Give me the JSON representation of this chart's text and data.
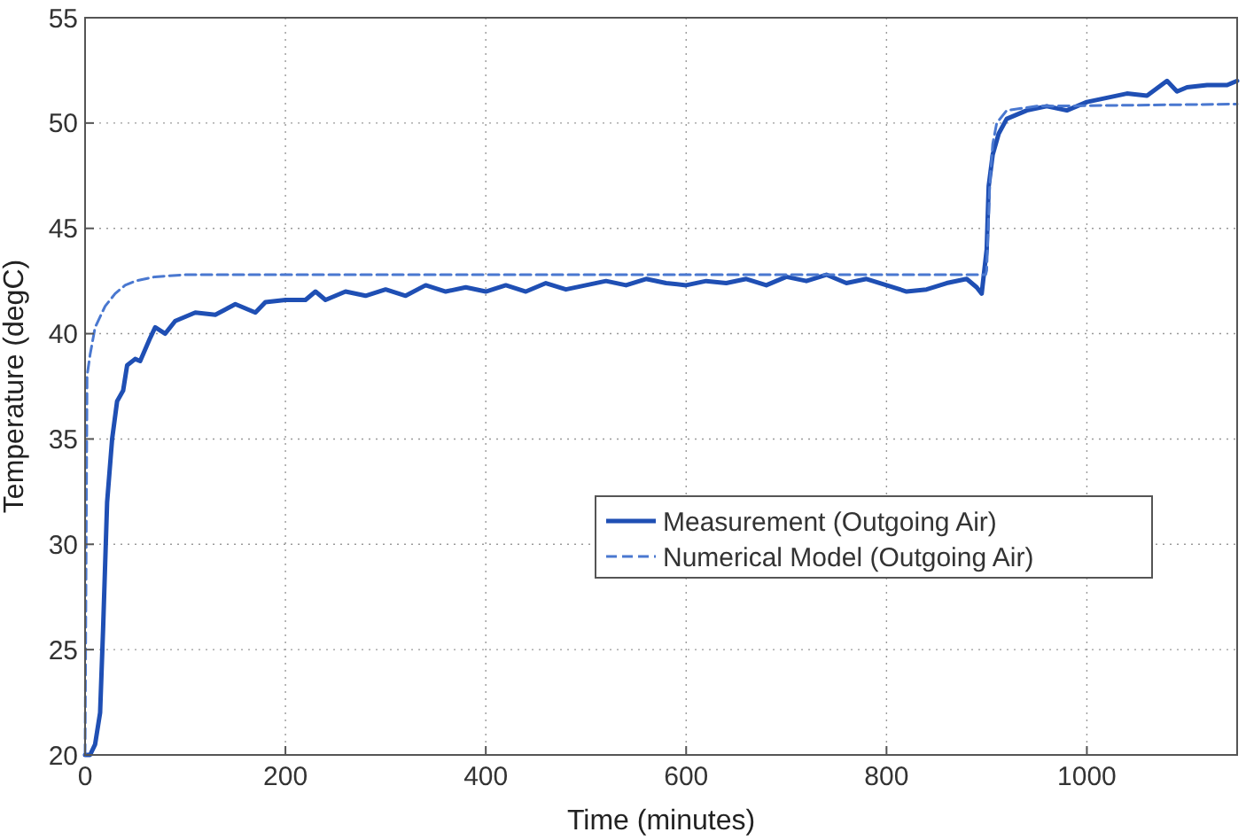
{
  "chart_data": {
    "type": "line",
    "xlabel": "Time (minutes)",
    "ylabel": "Temperature (degC)",
    "xlim": [
      0,
      1150
    ],
    "xticks": [
      0,
      200,
      400,
      600,
      800,
      1000
    ],
    "ylim": [
      20,
      55
    ],
    "yticks": [
      20,
      25,
      30,
      35,
      40,
      45,
      50,
      55
    ],
    "grid": true,
    "legend": "right",
    "series": [
      {
        "name": "Measurement (Outgoing Air)",
        "color": "#1f4fb4",
        "line_style": "solid",
        "x": [
          0,
          5,
          10,
          15,
          18,
          22,
          27,
          32,
          38,
          42,
          50,
          55,
          65,
          70,
          80,
          90,
          100,
          110,
          130,
          150,
          170,
          180,
          200,
          220,
          230,
          240,
          260,
          280,
          300,
          320,
          340,
          360,
          380,
          400,
          420,
          440,
          460,
          480,
          500,
          520,
          540,
          560,
          580,
          600,
          620,
          640,
          660,
          680,
          700,
          720,
          740,
          760,
          780,
          800,
          820,
          840,
          860,
          880,
          890,
          895,
          900,
          902,
          906,
          912,
          920,
          940,
          960,
          980,
          1000,
          1020,
          1040,
          1060,
          1080,
          1090,
          1100,
          1120,
          1140,
          1150
        ],
        "values": [
          20,
          20,
          20.5,
          22,
          26,
          32,
          35,
          36.8,
          37.3,
          38.5,
          38.8,
          38.7,
          39.8,
          40.3,
          40,
          40.6,
          40.8,
          41,
          40.9,
          41.4,
          41,
          41.5,
          41.6,
          41.6,
          42,
          41.6,
          42,
          41.8,
          42.1,
          41.8,
          42.3,
          42,
          42.2,
          42,
          42.3,
          42,
          42.4,
          42.1,
          42.3,
          42.5,
          42.3,
          42.6,
          42.4,
          42.3,
          42.5,
          42.4,
          42.6,
          42.3,
          42.7,
          42.5,
          42.8,
          42.4,
          42.6,
          42.3,
          42,
          42.1,
          42.4,
          42.6,
          42.2,
          41.9,
          44,
          47,
          48.5,
          49.5,
          50.2,
          50.6,
          50.8,
          50.6,
          51,
          51.2,
          51.4,
          51.3,
          52,
          51.5,
          51.7,
          51.8,
          51.8,
          52
        ]
      },
      {
        "name": "Numerical Model (Outgoing Air)",
        "color": "#4a78d0",
        "line_style": "dashed",
        "x": [
          0,
          2,
          5,
          10,
          20,
          30,
          40,
          50,
          70,
          100,
          899,
          900,
          903,
          906,
          910,
          920,
          950,
          1150
        ],
        "values": [
          20,
          38,
          39,
          40.3,
          41.3,
          41.9,
          42.3,
          42.5,
          42.7,
          42.8,
          42.8,
          43,
          47,
          49,
          50,
          50.6,
          50.8,
          50.9
        ]
      }
    ]
  }
}
